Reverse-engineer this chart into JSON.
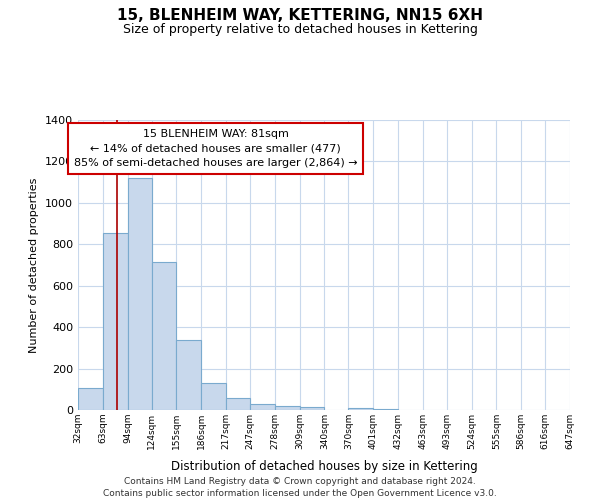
{
  "title": "15, BLENHEIM WAY, KETTERING, NN15 6XH",
  "subtitle": "Size of property relative to detached houses in Kettering",
  "xlabel": "Distribution of detached houses by size in Kettering",
  "ylabel": "Number of detached properties",
  "bin_edges": [
    32,
    63,
    94,
    124,
    155,
    186,
    217,
    247,
    278,
    309,
    340,
    370,
    401,
    432,
    463,
    493,
    524,
    555,
    586,
    616,
    647
  ],
  "bar_heights": [
    105,
    855,
    1120,
    715,
    340,
    130,
    60,
    30,
    20,
    15,
    0,
    10,
    5,
    0,
    0,
    0,
    0,
    0,
    0,
    0
  ],
  "bar_color": "#c8d8ec",
  "bar_edge_color": "#7aaace",
  "vline_x": 81,
  "vline_color": "#aa0000",
  "ylim": [
    0,
    1400
  ],
  "yticks": [
    0,
    200,
    400,
    600,
    800,
    1000,
    1200,
    1400
  ],
  "annotation_title": "15 BLENHEIM WAY: 81sqm",
  "annotation_line1": "← 14% of detached houses are smaller (477)",
  "annotation_line2": "85% of semi-detached houses are larger (2,864) →",
  "annotation_box_color": "#ffffff",
  "annotation_box_edge_color": "#cc0000",
  "footer_line1": "Contains HM Land Registry data © Crown copyright and database right 2024.",
  "footer_line2": "Contains public sector information licensed under the Open Government Licence v3.0.",
  "background_color": "#ffffff",
  "grid_color": "#c8d8ec"
}
